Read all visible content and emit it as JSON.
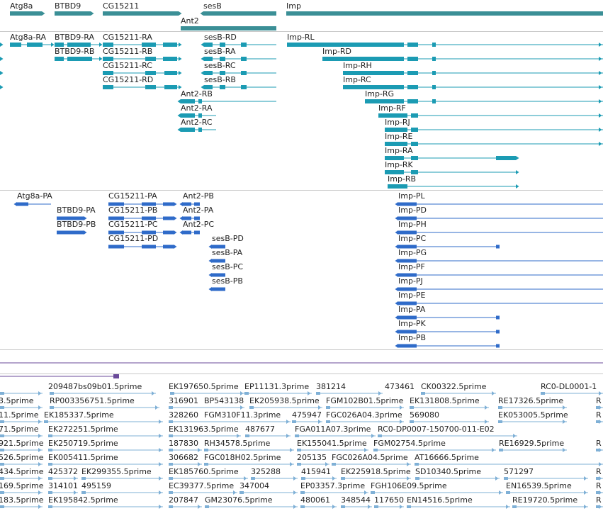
{
  "colors": {
    "gene": "#3b8f96",
    "transcript": "#1b9bb3",
    "protein": "#2f6bc9",
    "est": "#7fb0d6",
    "separator": "#c8c8c8",
    "scaffold": "#6a4a9a"
  },
  "genes_track": {
    "labels": [
      "Atg8a",
      "BTBD9",
      "CG15211",
      "sesB",
      "Ant2",
      "Imp"
    ]
  },
  "transcripts_track": {
    "labels": [
      "Atg8a-RA",
      "BTBD9-RA",
      "BTBD9-RB",
      "CG15211-RA",
      "CG15211-RB",
      "CG15211-RC",
      "CG15211-RD",
      "sesB-RD",
      "sesB-RA",
      "sesB-RC",
      "sesB-RB",
      "Ant2-RB",
      "Ant2-RA",
      "Ant2-RC",
      "Imp-RL",
      "Imp-RD",
      "Imp-RH",
      "Imp-RC",
      "Imp-RG",
      "Imp-RF",
      "Imp-RJ",
      "Imp-RE",
      "Imp-RA",
      "Imp-RK",
      "Imp-RB"
    ]
  },
  "proteins_track": {
    "labels": [
      "Atg8a-PA",
      "BTBD9-PA",
      "BTBD9-PB",
      "CG15211-PA",
      "CG15211-PB",
      "CG15211-PC",
      "CG15211-PD",
      "Ant2-PB",
      "Ant2-PA",
      "Ant2-PC",
      "sesB-PD",
      "sesB-PA",
      "sesB-PC",
      "sesB-PB",
      "Imp-PL",
      "Imp-PD",
      "Imp-PH",
      "Imp-PC",
      "Imp-PG",
      "Imp-PF",
      "Imp-PJ",
      "Imp-PE",
      "Imp-PA",
      "Imp-PK",
      "Imp-PB"
    ]
  },
  "est_track": {
    "labels": [
      "209487bs09b01.5prime",
      "EK197650.5prime",
      "EP11131.3prime",
      "381214",
      "473461",
      "CK00322.5prime",
      "RC0-DL0001-1",
      "3.5prime",
      "RP003356751.5prime",
      "316901",
      "BP543138",
      "EK205938.5prime",
      "FGM102B01.5prime",
      "EK131808.5prime",
      "RE17326.5prime",
      "R",
      "11.5prime",
      "EK185337.5prime",
      "328260",
      "FGM310F11.3prime",
      "475947",
      "FGC026A04.3prime",
      "569080",
      "EK053005.5prime",
      "R",
      "71.5prime",
      "EK272251.5prime",
      "EK131963.5prime",
      "487677",
      "FGA011A07.3prime",
      "RC0-DP0007-150700-011-E02",
      "921.5prime",
      "EK250719.5prime",
      "187830",
      "RH34578.5prime",
      "EK155041.5prime",
      "FGM02754.5prime",
      "RE16929.5prime",
      "R",
      "526.5prime",
      "EK005411.5prime",
      "306682",
      "FGC018H02.5prime",
      "205135",
      "FGC026A04.5prime",
      "AT16666.5prime",
      "434.5prime",
      "425372",
      "EK299355.5prime",
      "EK185760.5prime",
      "325288",
      "415941",
      "EK225918.5prime",
      "SD10340.5prime",
      "571297",
      "R",
      "169.5prime",
      "314101",
      "495159",
      "EC39377.5prime",
      "347004",
      "EP03357.3prime",
      "FGH106E09.5prime",
      "EN16539.5prime",
      "R",
      "183.5prime",
      "EK195842.5prime",
      "207847",
      "GM23076.5prime",
      "480061",
      "348544",
      "117650",
      "EN14516.5prime",
      "RE19720.5prime",
      "R"
    ]
  }
}
